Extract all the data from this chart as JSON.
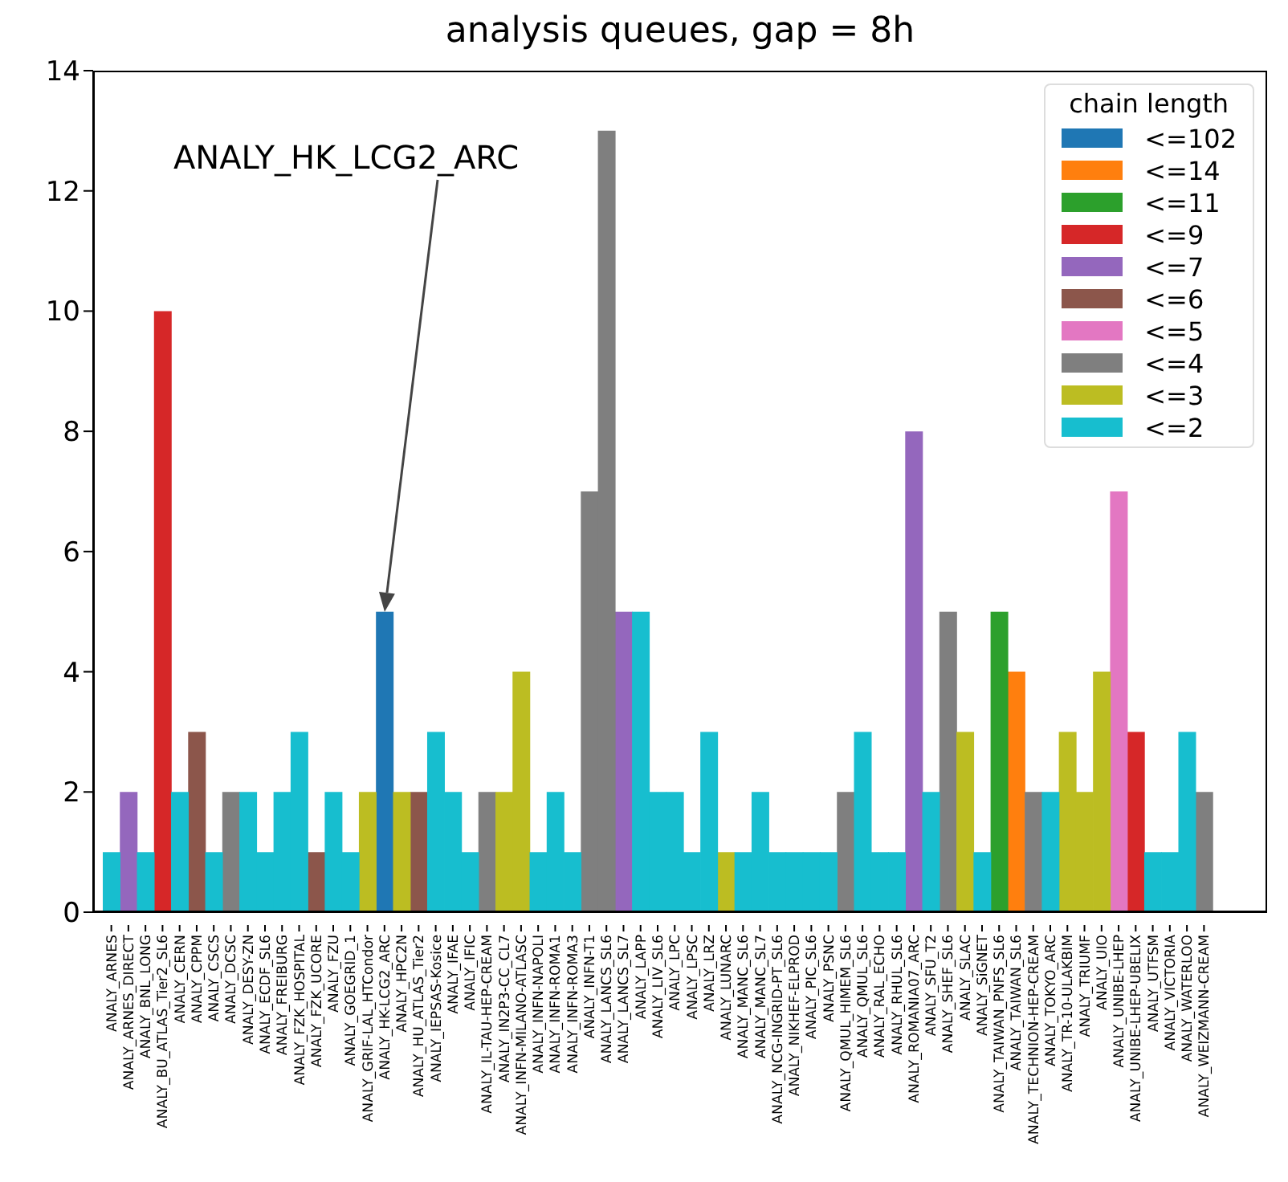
{
  "chart_data": {
    "type": "bar",
    "title": "analysis queues, gap = 8h",
    "legend_title": "chain length",
    "stacked": true,
    "legend": "top right",
    "grid": false,
    "categories": [
      "ANALY_ARNES",
      "ANALY_ARNES_DIRECT",
      "ANALY_BNL_LONG",
      "ANALY_BU_ATLAS_Tier2_SL6",
      "ANALY_CERN",
      "ANALY_CPPM",
      "ANALY_CSCS",
      "ANALY_DCSC",
      "ANALY_DESY-ZN",
      "ANALY_ECDF_SL6",
      "ANALY_FREIBURG",
      "ANALY_FZK_HOSPITAL",
      "ANALY_FZK_UCORE",
      "ANALY_FZU",
      "ANALY_GOEGRID_1",
      "ANALY_GRIF-LAL_HTCondor",
      "ANALY_HK-LCG2_ARC",
      "ANALY_HPC2N",
      "ANALY_HU_ATLAS_Tier2",
      "ANALY_IEPSAS-Kosice",
      "ANALY_IFAE",
      "ANALY_IFIC",
      "ANALY_IL-TAU-HEP-CREAM",
      "ANALY_IN2P3-CC_CL7",
      "ANALY_INFN-MILANO-ATLASC",
      "ANALY_INFN-NAPOLI",
      "ANALY_INFN-ROMA1",
      "ANALY_INFN-ROMA3",
      "ANALY_INFN-T1",
      "ANALY_LANCS_SL6",
      "ANALY_LANCS_SL7",
      "ANALY_LAPP",
      "ANALY_LIV_SL6",
      "ANALY_LPC",
      "ANALY_LPSC",
      "ANALY_LRZ",
      "ANALY_LUNARC",
      "ANALY_MANC_SL6",
      "ANALY_MANC_SL7",
      "ANALY_NCG-INGRID-PT_SL6",
      "ANALY_NIKHEF-ELPROD",
      "ANALY_PIC_SL6",
      "ANALY_PSNC",
      "ANALY_QMUL_HIMEM_SL6",
      "ANALY_QMUL_SL6",
      "ANALY_RAL_ECHO",
      "ANALY_RHUL_SL6",
      "ANALY_ROMANIA07_ARC",
      "ANALY_SFU_T2",
      "ANALY_SHEF_SL6",
      "ANALY_SLAC",
      "ANALY_SiGNET",
      "ANALY_TAIWAN_PNFS_SL6",
      "ANALY_TAIWAN_SL6",
      "ANALY_TECHNION-HEP-CREAM",
      "ANALY_TOKYO_ARC",
      "ANALY_TR-10-ULAKBIM",
      "ANALY_TRIUMF",
      "ANALY_UIO",
      "ANALY_UNIBE-LHEP",
      "ANALY_UNIBE-LHEP-UBELIX",
      "ANALY_UTFSM",
      "ANALY_VICTORIA",
      "ANALY_WATERLOO",
      "ANALY_WEIZMANN-CREAM"
    ],
    "ylim": [
      0,
      14
    ],
    "yticks": [
      0,
      2,
      4,
      6,
      8,
      10,
      12,
      14
    ],
    "annotations": [
      "ANALY_HK_LCG2_ARC"
    ],
    "series": [
      {
        "name": "<=102",
        "color": "#1f77b4",
        "values": [
          null,
          null,
          null,
          null,
          null,
          null,
          null,
          null,
          null,
          null,
          null,
          null,
          null,
          null,
          null,
          null,
          5,
          null,
          null,
          null,
          null,
          null,
          null,
          null,
          null,
          null,
          null,
          null,
          null,
          null,
          null,
          null,
          null,
          null,
          null,
          null,
          null,
          null,
          null,
          null,
          null,
          null,
          null,
          null,
          null,
          null,
          null,
          null,
          null,
          null,
          null,
          null,
          null,
          null,
          null,
          null,
          null,
          null,
          null,
          null,
          null,
          null,
          null,
          null,
          null
        ]
      },
      {
        "name": "<=14",
        "color": "#ff7f0e",
        "values": [
          null,
          null,
          null,
          null,
          null,
          null,
          null,
          null,
          null,
          null,
          null,
          null,
          null,
          null,
          null,
          null,
          null,
          null,
          null,
          null,
          null,
          null,
          null,
          null,
          null,
          null,
          null,
          null,
          null,
          null,
          null,
          null,
          null,
          null,
          null,
          null,
          null,
          null,
          null,
          null,
          null,
          null,
          null,
          null,
          null,
          null,
          null,
          null,
          null,
          null,
          null,
          null,
          null,
          4,
          null,
          null,
          null,
          null,
          null,
          null,
          null,
          null,
          null,
          null,
          null
        ]
      },
      {
        "name": "<=11",
        "color": "#2ca02c",
        "values": [
          null,
          null,
          null,
          null,
          null,
          null,
          null,
          null,
          null,
          null,
          null,
          null,
          null,
          null,
          null,
          null,
          null,
          null,
          null,
          null,
          null,
          null,
          null,
          null,
          null,
          null,
          null,
          null,
          null,
          null,
          null,
          null,
          null,
          null,
          null,
          null,
          null,
          null,
          null,
          null,
          null,
          null,
          null,
          null,
          null,
          null,
          null,
          null,
          null,
          null,
          null,
          null,
          5,
          null,
          null,
          null,
          null,
          null,
          null,
          null,
          null,
          null,
          null,
          null,
          null
        ]
      },
      {
        "name": "<=9",
        "color": "#d62728",
        "values": [
          null,
          null,
          null,
          10,
          null,
          null,
          null,
          null,
          null,
          null,
          null,
          null,
          null,
          null,
          null,
          null,
          null,
          null,
          null,
          null,
          null,
          null,
          null,
          null,
          null,
          null,
          null,
          null,
          null,
          null,
          null,
          null,
          null,
          null,
          null,
          null,
          null,
          null,
          null,
          null,
          null,
          null,
          null,
          null,
          null,
          null,
          null,
          null,
          null,
          null,
          null,
          null,
          null,
          null,
          null,
          null,
          null,
          null,
          null,
          null,
          3,
          null,
          null,
          null,
          null
        ]
      },
      {
        "name": "<=7",
        "color": "#9467bd",
        "values": [
          null,
          2,
          null,
          null,
          null,
          null,
          null,
          null,
          null,
          null,
          null,
          null,
          null,
          null,
          null,
          null,
          null,
          null,
          null,
          null,
          null,
          null,
          null,
          null,
          null,
          null,
          null,
          null,
          null,
          null,
          5,
          null,
          null,
          null,
          null,
          null,
          null,
          null,
          null,
          null,
          null,
          null,
          null,
          null,
          null,
          null,
          null,
          8,
          null,
          null,
          null,
          null,
          null,
          null,
          null,
          null,
          null,
          null,
          null,
          null,
          null,
          null,
          null,
          null,
          null
        ]
      },
      {
        "name": "<=6",
        "color": "#8c564b",
        "values": [
          null,
          null,
          null,
          null,
          null,
          3,
          null,
          null,
          null,
          null,
          null,
          null,
          1,
          null,
          null,
          null,
          null,
          null,
          2,
          null,
          null,
          null,
          null,
          null,
          null,
          null,
          null,
          null,
          null,
          null,
          null,
          null,
          null,
          null,
          null,
          null,
          null,
          null,
          null,
          null,
          null,
          null,
          null,
          null,
          null,
          null,
          null,
          null,
          null,
          null,
          null,
          null,
          null,
          null,
          null,
          null,
          null,
          null,
          null,
          null,
          null,
          null,
          null,
          null,
          null
        ]
      },
      {
        "name": "<=5",
        "color": "#e377c2",
        "values": [
          null,
          null,
          null,
          null,
          null,
          null,
          null,
          null,
          null,
          null,
          null,
          null,
          null,
          null,
          null,
          null,
          null,
          null,
          null,
          null,
          null,
          null,
          null,
          null,
          null,
          null,
          null,
          null,
          null,
          null,
          null,
          null,
          null,
          null,
          null,
          null,
          null,
          null,
          null,
          null,
          null,
          null,
          null,
          null,
          null,
          null,
          null,
          null,
          null,
          null,
          null,
          null,
          null,
          null,
          null,
          null,
          null,
          null,
          null,
          7,
          null,
          null,
          null,
          null,
          null
        ]
      },
      {
        "name": "<=4",
        "color": "#7f7f7f",
        "values": [
          null,
          null,
          null,
          null,
          null,
          null,
          null,
          2,
          null,
          null,
          null,
          null,
          null,
          null,
          null,
          null,
          null,
          null,
          null,
          null,
          null,
          null,
          2,
          null,
          null,
          null,
          null,
          null,
          7,
          13,
          null,
          null,
          null,
          null,
          null,
          null,
          null,
          null,
          null,
          null,
          null,
          null,
          null,
          2,
          null,
          null,
          null,
          null,
          null,
          5,
          null,
          null,
          null,
          null,
          2,
          null,
          null,
          null,
          null,
          null,
          null,
          null,
          null,
          null,
          2
        ]
      },
      {
        "name": "<=3",
        "color": "#bcbd22",
        "values": [
          null,
          null,
          null,
          null,
          null,
          null,
          null,
          null,
          null,
          null,
          null,
          null,
          null,
          null,
          null,
          2,
          null,
          2,
          null,
          null,
          null,
          null,
          null,
          2,
          4,
          null,
          null,
          null,
          null,
          null,
          null,
          null,
          null,
          null,
          null,
          null,
          1,
          null,
          null,
          null,
          null,
          null,
          null,
          null,
          null,
          null,
          null,
          null,
          null,
          null,
          3,
          null,
          null,
          null,
          null,
          null,
          3,
          2,
          4,
          null,
          null,
          null,
          null,
          null,
          null
        ]
      },
      {
        "name": "<=2",
        "color": "#17becf",
        "values": [
          1,
          null,
          1,
          null,
          2,
          null,
          1,
          null,
          2,
          1,
          2,
          3,
          null,
          2,
          1,
          null,
          null,
          null,
          null,
          3,
          2,
          1,
          null,
          null,
          null,
          1,
          2,
          1,
          null,
          null,
          null,
          5,
          2,
          2,
          1,
          3,
          null,
          1,
          2,
          1,
          1,
          1,
          1,
          null,
          3,
          1,
          1,
          null,
          2,
          null,
          null,
          1,
          null,
          null,
          null,
          2,
          null,
          null,
          null,
          null,
          null,
          1,
          1,
          3,
          null
        ]
      }
    ]
  }
}
